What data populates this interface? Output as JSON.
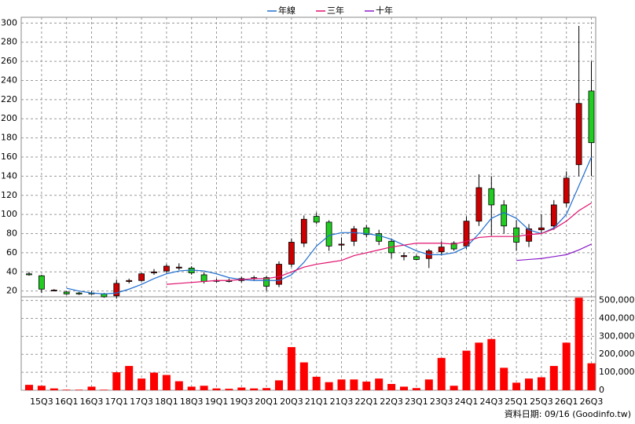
{
  "chart_data": [
    {
      "type": "candlestick",
      "categories": [
        null,
        "15Q3",
        null,
        "16Q1",
        null,
        "16Q3",
        null,
        "17Q1",
        null,
        "17Q3",
        null,
        "18Q1",
        null,
        "18Q3",
        null,
        "19Q1",
        null,
        "19Q3",
        null,
        "20Q1",
        null,
        "20Q3",
        null,
        "21Q1",
        null,
        "21Q3",
        null,
        "22Q1",
        null,
        "22Q3",
        null,
        "23Q1",
        null,
        "23Q3",
        null,
        "24Q1",
        null,
        "24Q3",
        null,
        "25Q1",
        null,
        "25Q3",
        null,
        "26Q1",
        null,
        "26Q3"
      ],
      "open": [
        38,
        36,
        21,
        19,
        18,
        18,
        17,
        15,
        30,
        31,
        39,
        41,
        44,
        44,
        37,
        31,
        31,
        31,
        33,
        34,
        27,
        48,
        70,
        98,
        92,
        68,
        72,
        86,
        80,
        72,
        56,
        56,
        54,
        61,
        70,
        67,
        93,
        127,
        110,
        86,
        72,
        84,
        88,
        112,
        152,
        229
      ],
      "high": [
        40,
        37,
        22,
        20,
        19,
        20,
        18,
        32,
        33,
        39,
        43,
        48,
        49,
        46,
        40,
        33,
        33,
        35,
        36,
        36,
        51,
        75,
        99,
        102,
        94,
        76,
        88,
        89,
        84,
        75,
        60,
        58,
        64,
        72,
        72,
        98,
        142,
        140,
        115,
        94,
        90,
        100,
        115,
        145,
        297,
        260
      ],
      "low": [
        36,
        18,
        20,
        16,
        16,
        16,
        13,
        12,
        28,
        30,
        37,
        39,
        42,
        37,
        28,
        29,
        29,
        29,
        31,
        20,
        24,
        45,
        66,
        90,
        62,
        62,
        67,
        76,
        68,
        54,
        52,
        52,
        44,
        57,
        62,
        64,
        88,
        78,
        80,
        62,
        66,
        80,
        84,
        108,
        140,
        140
      ],
      "close": [
        37,
        22,
        21,
        17,
        17,
        17,
        14,
        28,
        31,
        38,
        40,
        46,
        45,
        39,
        30,
        31,
        30,
        33,
        34,
        25,
        48,
        71,
        95,
        92,
        67,
        69,
        85,
        79,
        72,
        60,
        57,
        53,
        62,
        66,
        64,
        93,
        128,
        110,
        88,
        71,
        85,
        86,
        110,
        138,
        216,
        175
      ],
      "up_color": "#cc0000",
      "down_color": "#22cc22",
      "series": [
        {
          "name": "年線",
          "color": "#1f6fd0",
          "values": [
            null,
            null,
            null,
            23,
            20,
            18,
            17,
            18,
            22,
            27,
            33,
            38,
            41,
            42,
            41,
            38,
            34,
            32,
            31,
            31,
            31,
            37,
            50,
            67,
            78,
            81,
            81,
            80,
            78,
            74,
            68,
            62,
            58,
            58,
            60,
            66,
            80,
            96,
            102,
            96,
            84,
            80,
            86,
            100,
            130,
            160
          ]
        },
        {
          "name": "三年",
          "color": "#e0106e",
          "values": [
            null,
            null,
            null,
            null,
            null,
            null,
            null,
            null,
            null,
            null,
            null,
            27,
            28,
            29,
            30,
            31,
            31,
            32,
            33,
            33,
            35,
            40,
            45,
            48,
            50,
            52,
            57,
            60,
            63,
            66,
            68,
            70,
            70,
            70,
            69,
            72,
            76,
            77,
            77,
            77,
            79,
            80,
            85,
            93,
            104,
            112
          ]
        },
        {
          "name": "十年",
          "color": "#8a1cc8",
          "values": [
            null,
            null,
            null,
            null,
            null,
            null,
            null,
            null,
            null,
            null,
            null,
            null,
            null,
            null,
            null,
            null,
            null,
            null,
            null,
            null,
            null,
            null,
            null,
            null,
            null,
            null,
            null,
            null,
            null,
            null,
            null,
            null,
            null,
            null,
            null,
            null,
            null,
            null,
            null,
            52,
            53,
            54,
            56,
            58,
            63,
            69
          ]
        }
      ],
      "ylim": [
        14,
        306
      ],
      "yticks": [
        20,
        40,
        60,
        80,
        100,
        120,
        140,
        160,
        180,
        200,
        220,
        240,
        260,
        280,
        300
      ],
      "grid": true
    },
    {
      "type": "bar",
      "color": "#ff0000",
      "values": [
        30000,
        25000,
        10000,
        3000,
        3000,
        20000,
        3000,
        100000,
        135000,
        65000,
        98000,
        85000,
        50000,
        20000,
        25000,
        10000,
        8000,
        15000,
        10000,
        12000,
        55000,
        240000,
        155000,
        75000,
        45000,
        60000,
        60000,
        48000,
        65000,
        35000,
        20000,
        12000,
        60000,
        180000,
        25000,
        220000,
        265000,
        285000,
        125000,
        42000,
        65000,
        72000,
        135000,
        265000,
        515000,
        150000
      ],
      "ylim": [
        0,
        520000
      ],
      "yticks": [
        0,
        {
          "value": 100000,
          "label": "100,000"
        },
        {
          "value": 200000,
          "label": "200,000"
        },
        {
          "value": 300000,
          "label": "300,000"
        },
        {
          "value": 400000,
          "label": "400,000"
        },
        {
          "value": 500000,
          "label": "500,000"
        }
      ],
      "grid": true
    }
  ],
  "footer": "資料日期: 09/16 (Goodinfo.tw)"
}
